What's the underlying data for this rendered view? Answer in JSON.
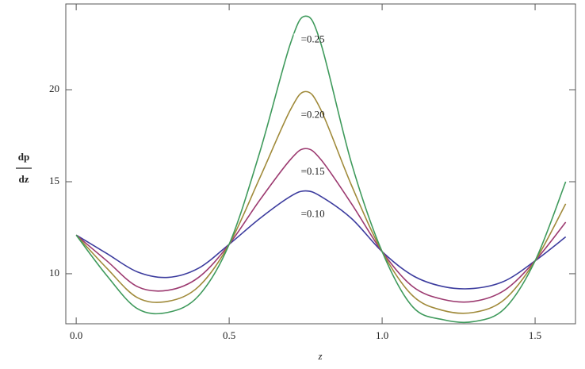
{
  "chart_data": {
    "type": "line",
    "xlabel": "z",
    "ylabel": {
      "numerator": "dp",
      "denominator": "dz"
    },
    "x": [
      0,
      0.1,
      0.2,
      0.3,
      0.4,
      0.5,
      0.6,
      0.7,
      0.75,
      0.8,
      0.9,
      1.0,
      1.1,
      1.2,
      1.3,
      1.4,
      1.5,
      1.6
    ],
    "series": [
      {
        "label": "=0.10",
        "color": "#3c3c9e",
        "values": [
          12.1,
          11.1,
          10.1,
          9.8,
          10.3,
          11.6,
          13.0,
          14.2,
          14.5,
          14.2,
          13.0,
          11.2,
          9.9,
          9.3,
          9.2,
          9.6,
          10.7,
          12.0
        ]
      },
      {
        "label": "=0.15",
        "color": "#9c3a70",
        "values": [
          12.1,
          10.7,
          9.3,
          9.1,
          9.8,
          11.6,
          14.0,
          16.2,
          16.8,
          16.2,
          13.8,
          11.2,
          9.3,
          8.6,
          8.5,
          9.1,
          10.7,
          12.8
        ]
      },
      {
        "label": "=0.20",
        "color": "#a08a3a",
        "values": [
          12.1,
          10.3,
          8.7,
          8.5,
          9.3,
          11.6,
          15.2,
          18.9,
          19.9,
          18.9,
          14.8,
          11.2,
          8.8,
          8.0,
          7.9,
          8.6,
          10.7,
          13.8
        ]
      },
      {
        "label": "=0.25",
        "color": "#3f9a5c",
        "values": [
          12.1,
          9.9,
          8.1,
          7.9,
          8.8,
          11.6,
          16.6,
          22.5,
          24.0,
          22.5,
          16.0,
          11.2,
          8.2,
          7.5,
          7.4,
          8.1,
          10.7,
          15.0
        ]
      }
    ],
    "xlim": [
      -0.034,
      1.632
    ],
    "ylim": [
      7.28,
      24.66
    ],
    "xticks": [
      {
        "value": 0,
        "label": "0.0"
      },
      0.5,
      {
        "value": 1,
        "label": "1.0"
      },
      1.5
    ],
    "yticks": [
      10,
      15,
      20
    ]
  }
}
